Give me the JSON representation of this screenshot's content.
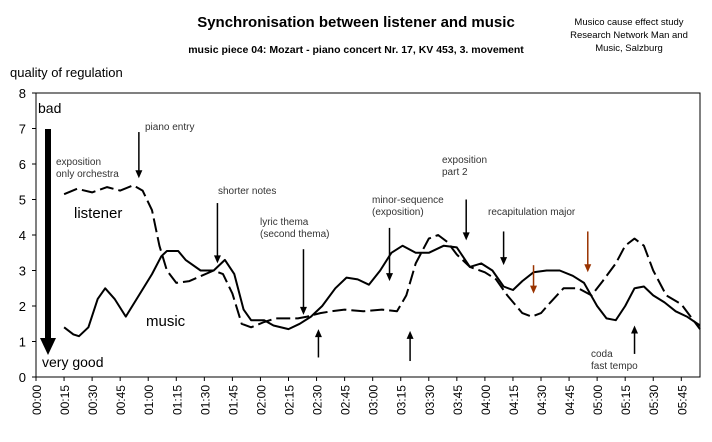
{
  "chart_data": {
    "type": "line",
    "title": "Synchronisation between listener and music",
    "subtitle": "music piece 04: Mozart - piano concert Nr. 17, KV 453, 3. movement",
    "credit": [
      "Musico cause effect study",
      "Research Network Man and",
      "Music, Salzburg"
    ],
    "ylabel": "quality of regulation",
    "xlabel": "",
    "ylim": [
      0,
      8
    ],
    "yticks": [
      "0",
      "1",
      "2",
      "3",
      "4",
      "5",
      "6",
      "7",
      "8"
    ],
    "x_unit": "seconds",
    "xlim": [
      0,
      355
    ],
    "x_ticks": [
      "00:00",
      "00:15",
      "00:30",
      "00:45",
      "01:00",
      "01:15",
      "01:30",
      "01:45",
      "02:00",
      "02:15",
      "02:30",
      "02:45",
      "03:00",
      "03:15",
      "03:30",
      "03:45",
      "04:00",
      "04:15",
      "04:30",
      "04:45",
      "05:00",
      "05:15",
      "05:30",
      "05:45"
    ],
    "grid": false,
    "scale_arrow": {
      "top_label": "bad",
      "bottom_label": "very good"
    },
    "series": [
      {
        "name": "listener",
        "style": "dashed",
        "points": [
          [
            15,
            5.15
          ],
          [
            22,
            5.3
          ],
          [
            30,
            5.2
          ],
          [
            38,
            5.35
          ],
          [
            45,
            5.25
          ],
          [
            52,
            5.4
          ],
          [
            57,
            5.25
          ],
          [
            62,
            4.7
          ],
          [
            66,
            3.7
          ],
          [
            70,
            3.0
          ],
          [
            75,
            2.65
          ],
          [
            82,
            2.7
          ],
          [
            95,
            3.0
          ],
          [
            100,
            2.9
          ],
          [
            105,
            2.35
          ],
          [
            110,
            1.5
          ],
          [
            115,
            1.4
          ],
          [
            122,
            1.55
          ],
          [
            128,
            1.65
          ],
          [
            135,
            1.65
          ],
          [
            140,
            1.65
          ],
          [
            145,
            1.7
          ],
          [
            152,
            1.8
          ],
          [
            158,
            1.85
          ],
          [
            165,
            1.9
          ],
          [
            175,
            1.85
          ],
          [
            185,
            1.9
          ],
          [
            193,
            1.85
          ],
          [
            198,
            2.3
          ],
          [
            203,
            3.2
          ],
          [
            210,
            3.9
          ],
          [
            215,
            4.0
          ],
          [
            220,
            3.8
          ],
          [
            225,
            3.45
          ],
          [
            232,
            3.1
          ],
          [
            240,
            2.95
          ],
          [
            246,
            2.75
          ],
          [
            252,
            2.3
          ],
          [
            260,
            1.8
          ],
          [
            265,
            1.7
          ],
          [
            270,
            1.8
          ],
          [
            275,
            2.1
          ],
          [
            282,
            2.5
          ],
          [
            290,
            2.5
          ],
          [
            297,
            2.3
          ],
          [
            303,
            2.7
          ],
          [
            310,
            3.2
          ],
          [
            315,
            3.7
          ],
          [
            320,
            3.9
          ],
          [
            325,
            3.7
          ],
          [
            330,
            3.0
          ],
          [
            337,
            2.3
          ],
          [
            345,
            2.05
          ],
          [
            350,
            1.7
          ],
          [
            355,
            1.35
          ]
        ]
      },
      {
        "name": "music",
        "style": "solid",
        "points": [
          [
            15,
            1.4
          ],
          [
            20,
            1.2
          ],
          [
            23,
            1.15
          ],
          [
            28,
            1.4
          ],
          [
            33,
            2.2
          ],
          [
            37,
            2.5
          ],
          [
            42,
            2.2
          ],
          [
            48,
            1.7
          ],
          [
            55,
            2.3
          ],
          [
            62,
            2.9
          ],
          [
            67,
            3.4
          ],
          [
            70,
            3.55
          ],
          [
            76,
            3.55
          ],
          [
            80,
            3.3
          ],
          [
            88,
            3.0
          ],
          [
            95,
            3.0
          ],
          [
            101,
            3.3
          ],
          [
            106,
            2.9
          ],
          [
            111,
            1.9
          ],
          [
            115,
            1.6
          ],
          [
            122,
            1.6
          ],
          [
            127,
            1.45
          ],
          [
            135,
            1.35
          ],
          [
            141,
            1.5
          ],
          [
            147,
            1.7
          ],
          [
            153,
            2.0
          ],
          [
            160,
            2.5
          ],
          [
            166,
            2.8
          ],
          [
            172,
            2.75
          ],
          [
            178,
            2.6
          ],
          [
            184,
            3.0
          ],
          [
            190,
            3.5
          ],
          [
            196,
            3.7
          ],
          [
            203,
            3.5
          ],
          [
            210,
            3.5
          ],
          [
            218,
            3.7
          ],
          [
            225,
            3.65
          ],
          [
            232,
            3.1
          ],
          [
            238,
            3.2
          ],
          [
            244,
            3.0
          ],
          [
            250,
            2.55
          ],
          [
            255,
            2.45
          ],
          [
            260,
            2.7
          ],
          [
            266,
            2.95
          ],
          [
            273,
            3.0
          ],
          [
            280,
            3.0
          ],
          [
            287,
            2.85
          ],
          [
            293,
            2.65
          ],
          [
            300,
            2.0
          ],
          [
            305,
            1.65
          ],
          [
            310,
            1.6
          ],
          [
            315,
            2.0
          ],
          [
            320,
            2.5
          ],
          [
            325,
            2.55
          ],
          [
            330,
            2.3
          ],
          [
            336,
            2.1
          ],
          [
            342,
            1.85
          ],
          [
            348,
            1.7
          ],
          [
            355,
            1.45
          ]
        ]
      }
    ],
    "annotations": [
      {
        "text": "exposition\nonly orchestra"
      },
      {
        "text": "piano entry"
      },
      {
        "text": "shorter notes"
      },
      {
        "text": "lyric thema\n(second thema)"
      },
      {
        "text": "minor-sequence\n(exposition)"
      },
      {
        "text": "exposition\npart 2"
      },
      {
        "text": "recapitulation major"
      },
      {
        "text": "coda\nfast tempo"
      }
    ],
    "arrows": [
      {
        "x": 55,
        "y_from": 6.9,
        "y_to": 5.6,
        "color": "#000000"
      },
      {
        "x": 97,
        "y_from": 4.9,
        "y_to": 3.2,
        "color": "#000000"
      },
      {
        "x": 143,
        "y_from": 3.6,
        "y_to": 1.75,
        "color": "#000000"
      },
      {
        "x": 151,
        "y_from": 0.55,
        "y_to": 1.35,
        "color": "#000000"
      },
      {
        "x": 189,
        "y_from": 4.2,
        "y_to": 2.7,
        "color": "#000000"
      },
      {
        "x": 200,
        "y_from": 0.45,
        "y_to": 1.3,
        "color": "#000000"
      },
      {
        "x": 230,
        "y_from": 5.0,
        "y_to": 3.85,
        "color": "#000000"
      },
      {
        "x": 250,
        "y_from": 4.1,
        "y_to": 3.15,
        "color": "#000000"
      },
      {
        "x": 266,
        "y_from": 3.15,
        "y_to": 2.35,
        "color": "#993300"
      },
      {
        "x": 295,
        "y_from": 4.1,
        "y_to": 2.95,
        "color": "#993300"
      },
      {
        "x": 320,
        "y_from": 0.65,
        "y_to": 1.45,
        "color": "#000000"
      }
    ],
    "series_labels": [
      "listener",
      "music"
    ]
  }
}
